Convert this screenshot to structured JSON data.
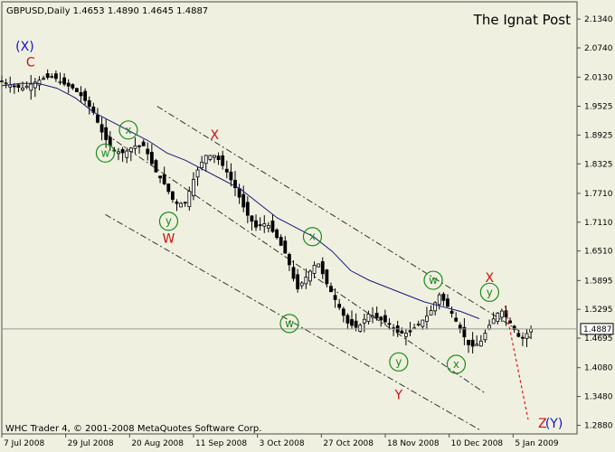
{
  "header": {
    "symbol_line": "GBPUSD,Daily  1.4653 1.4890 1.4645 1.4887",
    "watermark": "The Ignat Post"
  },
  "footer": {
    "copyright": "WHC Trader 4, © 2001-2008 MetaQuotes Software Corp."
  },
  "colors": {
    "background": "#f0f0e0",
    "frame": "#4a4a4a",
    "candle": "#000000",
    "moving_average": "#1a1a7a",
    "channel": "#333333",
    "projection": "#e01010",
    "wave_circle": "#1a8a1a",
    "wave_red": "#cc1010",
    "wave_blue": "#1010cc"
  },
  "chart_data": {
    "type": "candlestick",
    "symbol": "GBPUSD",
    "timeframe": "Daily",
    "last_bar": {
      "open": 1.4653,
      "high": 1.489,
      "low": 1.4645,
      "close": 1.4887
    },
    "current_price_label": "1.4887",
    "y_ticks": [
      "2.1340",
      "2.0740",
      "2.0130",
      "1.9525",
      "1.8925",
      "1.8325",
      "1.7710",
      "1.7110",
      "1.6510",
      "1.5895",
      "1.5295",
      "1.4695",
      "1.4080",
      "1.3480",
      "1.2880"
    ],
    "ylim": [
      1.27,
      2.17
    ],
    "x_ticks": [
      "7 Jul 2008",
      "29 Jul 2008",
      "20 Aug 2008",
      "11 Sep 2008",
      "3 Oct 2008",
      "27 Oct 2008",
      "18 Nov 2008",
      "10 Dec 2008",
      "5 Jan 2009"
    ],
    "close_path": [
      2.005,
      1.995,
      1.99,
      2.0,
      2.01,
      2.015,
      2.0,
      1.99,
      1.97,
      1.94,
      1.89,
      1.86,
      1.855,
      1.87,
      1.87,
      1.82,
      1.79,
      1.75,
      1.75,
      1.81,
      1.85,
      1.85,
      1.82,
      1.78,
      1.73,
      1.7,
      1.71,
      1.68,
      1.64,
      1.57,
      1.6,
      1.63,
      1.58,
      1.54,
      1.5,
      1.49,
      1.52,
      1.51,
      1.5,
      1.48,
      1.48,
      1.5,
      1.52,
      1.56,
      1.53,
      1.49,
      1.45,
      1.46,
      1.5,
      1.53,
      1.5,
      1.465,
      1.4887
    ],
    "moving_average": [
      1.995,
      2.0,
      2.0,
      1.99,
      1.97,
      1.94,
      1.92,
      1.9,
      1.88,
      1.855,
      1.84,
      1.82,
      1.8,
      1.78,
      1.75,
      1.72,
      1.7,
      1.68,
      1.65,
      1.61,
      1.59,
      1.575,
      1.56,
      1.545,
      1.535,
      1.525,
      1.51
    ],
    "wave_labels": [
      {
        "text": "(X)",
        "style": "blue",
        "price": 2.078,
        "day": 0.04
      },
      {
        "text": "C",
        "style": "red",
        "price": 2.045,
        "day": 0.05
      },
      {
        "text": "w",
        "style": "circle",
        "price": 1.855,
        "day": 0.18
      },
      {
        "text": "x",
        "style": "circle",
        "price": 1.903,
        "day": 0.22
      },
      {
        "text": "y",
        "style": "circle",
        "price": 1.713,
        "day": 0.29
      },
      {
        "text": "W",
        "style": "red",
        "price": 1.678,
        "day": 0.29
      },
      {
        "text": "X",
        "style": "red",
        "price": 1.893,
        "day": 0.37
      },
      {
        "text": "x",
        "style": "circle",
        "price": 1.681,
        "day": 0.54
      },
      {
        "text": "w",
        "style": "circle",
        "price": 1.5,
        "day": 0.5
      },
      {
        "text": "y",
        "style": "circle",
        "price": 1.42,
        "day": 0.69
      },
      {
        "text": "Y",
        "style": "red",
        "price": 1.352,
        "day": 0.69
      },
      {
        "text": "w",
        "style": "circle",
        "price": 1.59,
        "day": 0.75
      },
      {
        "text": "x",
        "style": "circle",
        "price": 1.415,
        "day": 0.79
      },
      {
        "text": "y",
        "style": "circle",
        "price": 1.565,
        "day": 0.848
      },
      {
        "text": "X",
        "style": "red",
        "price": 1.596,
        "day": 0.848
      },
      {
        "text": "Z",
        "style": "red",
        "price": 1.293,
        "day": 0.94
      },
      {
        "text": "(Y)",
        "style": "blue",
        "price": 1.293,
        "day": 0.96
      }
    ]
  }
}
